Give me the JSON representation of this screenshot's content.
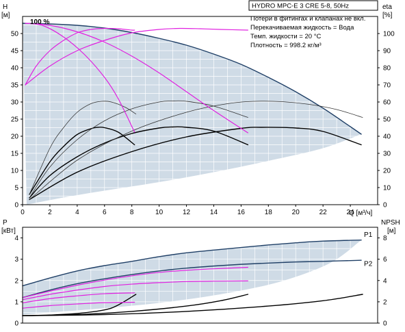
{
  "colors": {
    "background": "#ffffff",
    "region_fill": "#cfdbe6",
    "grid": "#ffffff",
    "axis": "#000000",
    "max_curve": "#1f3f66",
    "pump_curve": "#000000",
    "pump_thin": "#333333",
    "efficiency": "#e020e0"
  },
  "chart_data": [
    {
      "id": "top",
      "type": "line",
      "title": "HYDRO MPC-E 3 CRE 5-8, 50Hz",
      "info_lines": [
        "Потери в фитингах и клапанах не вкл.",
        "Перекачиваемая жидкость = Вода",
        "Темп. жидкости = 20 °C",
        "Плотность = 998.2 кг/м³"
      ],
      "ylabel_left": [
        "H",
        "[м]"
      ],
      "ylabel_right": [
        "eta",
        "[%]"
      ],
      "xlabel": "Q [м³/ч]",
      "xlim": [
        0,
        26
      ],
      "ylim": [
        0,
        55
      ],
      "xticks": [
        0,
        2,
        4,
        6,
        8,
        10,
        12,
        14,
        16,
        18,
        20,
        22,
        24
      ],
      "yticks": [
        0,
        5,
        10,
        15,
        20,
        25,
        30,
        35,
        40,
        45,
        50
      ],
      "y2lim": [
        0,
        110
      ],
      "y2ticks": [
        0,
        10,
        20,
        30,
        40,
        50,
        60,
        70,
        80,
        90,
        100
      ],
      "annotation": "100 %",
      "grid": true,
      "region": {
        "upper": [
          [
            0,
            53
          ],
          [
            4,
            52.4
          ],
          [
            8,
            50.3
          ],
          [
            12,
            46.6
          ],
          [
            16,
            41
          ],
          [
            20,
            33
          ],
          [
            24.8,
            20.6
          ]
        ],
        "lower": [
          [
            24.8,
            20.6
          ],
          [
            22,
            16.5
          ],
          [
            18,
            12.8
          ],
          [
            14,
            9.5
          ],
          [
            10,
            6.6
          ],
          [
            6,
            4.1
          ],
          [
            3,
            2.1
          ],
          [
            0.3,
            0
          ]
        ]
      },
      "series": [
        {
          "role": "max_curve",
          "points": [
            [
              0,
              53
            ],
            [
              2,
              52.8
            ],
            [
              4,
              52.4
            ],
            [
              6,
              51.6
            ],
            [
              8,
              50.3
            ],
            [
              10,
              48.6
            ],
            [
              12,
              46.6
            ],
            [
              14,
              44
            ],
            [
              16,
              41
            ],
            [
              18,
              37.2
            ],
            [
              20,
              33
            ],
            [
              22,
              28.2
            ],
            [
              24,
              22.8
            ],
            [
              24.8,
              20.6
            ]
          ]
        },
        {
          "role": "pump_curve",
          "points": [
            [
              0.5,
              3
            ],
            [
              2,
              12.5
            ],
            [
              3,
              17
            ],
            [
              4,
              20.5
            ],
            [
              5,
              22.2
            ],
            [
              5.5,
              22.6
            ],
            [
              6,
              22.5
            ],
            [
              7,
              21.2
            ],
            [
              8.2,
              17.5
            ]
          ]
        },
        {
          "role": "pump_curve",
          "points": [
            [
              0.5,
              2
            ],
            [
              2,
              8.5
            ],
            [
              4,
              14
            ],
            [
              6,
              18
            ],
            [
              8,
              20.8
            ],
            [
              10,
              22.4
            ],
            [
              11,
              22.7
            ],
            [
              12,
              22.6
            ],
            [
              14,
              21.5
            ],
            [
              16.5,
              17.5
            ]
          ]
        },
        {
          "role": "pump_curve",
          "points": [
            [
              0.5,
              1.5
            ],
            [
              4,
              9.5
            ],
            [
              8,
              15.5
            ],
            [
              12,
              19.8
            ],
            [
              16,
              22.3
            ],
            [
              17.5,
              22.6
            ],
            [
              20,
              22.4
            ],
            [
              22,
              21.4
            ],
            [
              24.8,
              17.5
            ]
          ]
        },
        {
          "role": "pump_thin",
          "points": [
            [
              0.5,
              3
            ],
            [
              2,
              16.5
            ],
            [
              3,
              22.5
            ],
            [
              4,
              27
            ],
            [
              5,
              29.5
            ],
            [
              5.8,
              30.2
            ],
            [
              6.5,
              30
            ],
            [
              7.5,
              28.5
            ],
            [
              8.3,
              26.5
            ]
          ]
        },
        {
          "role": "pump_thin",
          "points": [
            [
              0.5,
              2
            ],
            [
              2,
              11
            ],
            [
              4,
              19
            ],
            [
              6,
              24.5
            ],
            [
              8,
              28
            ],
            [
              10,
              30
            ],
            [
              11,
              30.3
            ],
            [
              12,
              30.2
            ],
            [
              14,
              28.8
            ],
            [
              16.5,
              25.5
            ]
          ]
        },
        {
          "role": "pump_thin",
          "points": [
            [
              0.5,
              1.5
            ],
            [
              4,
              13
            ],
            [
              8,
              21.5
            ],
            [
              12,
              27
            ],
            [
              15,
              29.5
            ],
            [
              17,
              30.2
            ],
            [
              19,
              30.1
            ],
            [
              21,
              29.3
            ],
            [
              23,
              27.8
            ],
            [
              24.9,
              25.5
            ]
          ]
        },
        {
          "role": "efficiency",
          "points": [
            [
              0.2,
              53
            ],
            [
              1.5,
              52.3
            ],
            [
              3,
              49
            ],
            [
              4.5,
              44
            ],
            [
              6,
              37.2
            ],
            [
              7,
              31
            ],
            [
              8.2,
              21.2
            ]
          ]
        },
        {
          "role": "efficiency",
          "points": [
            [
              0.2,
              53
            ],
            [
              2,
              52.4
            ],
            [
              4,
              50.5
            ],
            [
              6,
              47.5
            ],
            [
              8,
              43.4
            ],
            [
              10,
              38.5
            ],
            [
              12,
              33
            ],
            [
              14,
              27.5
            ],
            [
              16.5,
              21
            ]
          ]
        },
        {
          "role": "efficiency",
          "points": [
            [
              0.2,
              35
            ],
            [
              1,
              40.5
            ],
            [
              2,
              45
            ],
            [
              3,
              48
            ],
            [
              4,
              50.2
            ],
            [
              5,
              51.2
            ],
            [
              6,
              51.5
            ],
            [
              7,
              51.4
            ],
            [
              8,
              51
            ],
            [
              8.2,
              51
            ]
          ]
        },
        {
          "role": "efficiency",
          "points": [
            [
              0.2,
              35
            ],
            [
              2,
              40.5
            ],
            [
              4,
              45
            ],
            [
              6,
              48
            ],
            [
              8,
              50.2
            ],
            [
              10,
              51.2
            ],
            [
              11.5,
              51.5
            ],
            [
              13,
              51.4
            ],
            [
              14.5,
              51.2
            ],
            [
              16.5,
              51
            ]
          ]
        }
      ]
    },
    {
      "id": "bottom",
      "type": "line",
      "ylabel_left": [
        "P",
        "[кВт]"
      ],
      "ylabel_right": [
        "NPSH",
        "[м]"
      ],
      "xlim": [
        0,
        26
      ],
      "ylim": [
        0,
        4.5
      ],
      "yticks": [
        0,
        1,
        2,
        3,
        4
      ],
      "y2lim": [
        0,
        9
      ],
      "y2ticks": [
        0,
        2,
        4,
        6,
        8
      ],
      "grid": true,
      "region": {
        "upper": [
          [
            0,
            1.75
          ],
          [
            4,
            2.45
          ],
          [
            8,
            2.9
          ],
          [
            12,
            3.3
          ],
          [
            16,
            3.55
          ],
          [
            20,
            3.77
          ],
          [
            24.8,
            3.9
          ]
        ],
        "lower": [
          [
            24.8,
            3.9
          ],
          [
            23,
            3
          ],
          [
            21,
            2.4
          ],
          [
            18,
            1.8
          ],
          [
            14,
            1.3
          ],
          [
            10,
            0.95
          ],
          [
            6,
            0.7
          ],
          [
            2,
            0.5
          ],
          [
            0,
            0.4
          ]
        ]
      },
      "labels": [
        {
          "text": "P1",
          "x": 25,
          "y": 4.05
        },
        {
          "text": "P2",
          "x": 25,
          "y": 2.68
        }
      ],
      "series": [
        {
          "name": "P1",
          "role": "max_curve",
          "points": [
            [
              0,
              1.75
            ],
            [
              2,
              2.12
            ],
            [
              4,
              2.45
            ],
            [
              6,
              2.7
            ],
            [
              8,
              2.9
            ],
            [
              10,
              3.12
            ],
            [
              12,
              3.3
            ],
            [
              14,
              3.43
            ],
            [
              16,
              3.55
            ],
            [
              18,
              3.67
            ],
            [
              20,
              3.77
            ],
            [
              22,
              3.85
            ],
            [
              24.8,
              3.9
            ]
          ]
        },
        {
          "name": "P2",
          "role": "max_curve",
          "points": [
            [
              0,
              1.2
            ],
            [
              2,
              1.55
            ],
            [
              4,
              1.85
            ],
            [
              6,
              2.08
            ],
            [
              8,
              2.28
            ],
            [
              10,
              2.45
            ],
            [
              12,
              2.58
            ],
            [
              14,
              2.68
            ],
            [
              16,
              2.76
            ],
            [
              18,
              2.82
            ],
            [
              20,
              2.87
            ],
            [
              22,
              2.9
            ],
            [
              24.8,
              2.95
            ]
          ]
        },
        {
          "role": "pump_curve",
          "points": [
            [
              0,
              0.35
            ],
            [
              2,
              0.38
            ],
            [
              4,
              0.45
            ],
            [
              6,
              0.62
            ],
            [
              7,
              0.85
            ],
            [
              8.3,
              1.35
            ]
          ]
        },
        {
          "role": "pump_curve",
          "points": [
            [
              0,
              0.35
            ],
            [
              4,
              0.4
            ],
            [
              8,
              0.55
            ],
            [
              12,
              0.8
            ],
            [
              14.5,
              1.05
            ],
            [
              16.5,
              1.35
            ]
          ]
        },
        {
          "role": "pump_curve",
          "points": [
            [
              0,
              0.35
            ],
            [
              6,
              0.4
            ],
            [
              12,
              0.55
            ],
            [
              18,
              0.8
            ],
            [
              22,
              1.05
            ],
            [
              24.9,
              1.35
            ]
          ]
        },
        {
          "role": "efficiency",
          "points": [
            [
              0,
              1.2
            ],
            [
              2,
              1.5
            ],
            [
              4,
              1.78
            ],
            [
              6,
              2.02
            ],
            [
              8,
              2.22
            ],
            [
              10,
              2.38
            ],
            [
              12,
              2.48
            ],
            [
              14,
              2.55
            ],
            [
              16.5,
              2.62
            ]
          ]
        },
        {
          "role": "efficiency",
          "points": [
            [
              0,
              1.1
            ],
            [
              2,
              1.35
            ],
            [
              4,
              1.55
            ],
            [
              6,
              1.72
            ],
            [
              8,
              1.83
            ],
            [
              10,
              1.9
            ],
            [
              12,
              1.95
            ],
            [
              14,
              1.97
            ],
            [
              16.5,
              1.98
            ]
          ]
        },
        {
          "role": "efficiency",
          "points": [
            [
              0,
              0.95
            ],
            [
              2,
              1.15
            ],
            [
              4,
              1.28
            ],
            [
              6,
              1.38
            ],
            [
              8.2,
              1.42
            ]
          ]
        },
        {
          "role": "efficiency",
          "points": [
            [
              0,
              0.7
            ],
            [
              2,
              0.82
            ],
            [
              4,
              0.9
            ],
            [
              6,
              0.96
            ],
            [
              8.2,
              0.98
            ]
          ]
        }
      ]
    }
  ]
}
